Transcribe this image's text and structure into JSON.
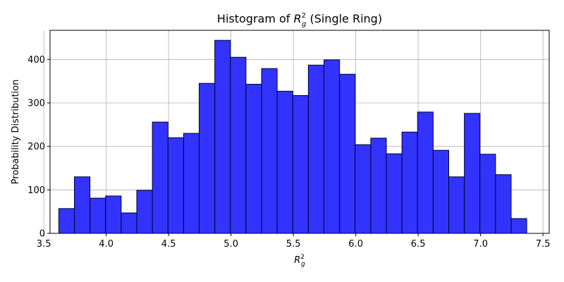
{
  "chart_data": {
    "type": "bar",
    "title_prefix": "Histogram of ",
    "title_var": "R",
    "title_sup": "2",
    "title_sub": "g",
    "title_suffix": " (Single Ring)",
    "xlabel_var": "R",
    "xlabel_sup": "2",
    "xlabel_sub": "g",
    "ylabel": "Probability Distribution",
    "xlim": [
      3.55,
      7.55
    ],
    "ylim": [
      0,
      467
    ],
    "xticks": [
      3.5,
      4.0,
      4.5,
      5.0,
      5.5,
      6.0,
      6.5,
      7.0,
      7.5
    ],
    "xtick_labels": [
      "3.5",
      "4.0",
      "4.5",
      "5.0",
      "5.5",
      "6.0",
      "6.5",
      "7.0",
      "7.5"
    ],
    "yticks": [
      0,
      100,
      200,
      300,
      400
    ],
    "ytick_labels": [
      "0",
      "100",
      "200",
      "300",
      "400"
    ],
    "grid": true,
    "bar_color": "#3333ff",
    "bar_edge_color": "#000033",
    "bin_start": 3.62,
    "bin_width": 0.125,
    "values": [
      57,
      130,
      81,
      86,
      47,
      99,
      256,
      220,
      230,
      345,
      444,
      405,
      343,
      379,
      327,
      317,
      387,
      399,
      366,
      204,
      219,
      183,
      233,
      279,
      191,
      130,
      276,
      182,
      135,
      34
    ]
  }
}
